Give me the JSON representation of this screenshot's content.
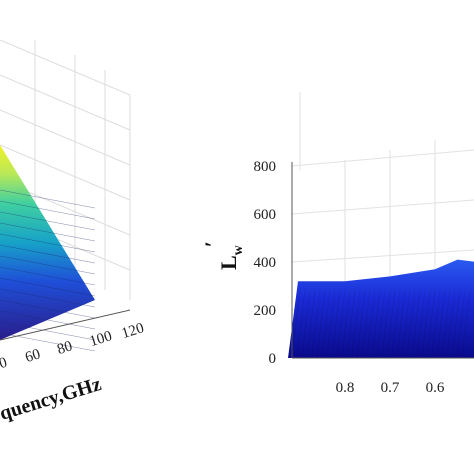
{
  "chart_data": [
    {
      "type": "surface",
      "panel": "left",
      "xlabel": "quency,GHz",
      "x_ticks": [
        "-0",
        "60",
        "80",
        "100",
        "120"
      ],
      "colormap": [
        "#2a1d8c",
        "#1f4fd8",
        "#17a2c8",
        "#3fd0a0",
        "#b8e85a",
        "#f2f226"
      ],
      "grid": true
    },
    {
      "type": "surface",
      "panel": "right",
      "ylabel": "L",
      "ylabel_sub": "w",
      "ylabel_prime": "′",
      "y_ticks": [
        0,
        200,
        400,
        600,
        800
      ],
      "ylim": [
        0,
        850
      ],
      "x_ticks": [
        "0.8",
        "0.7",
        "0.6"
      ],
      "x_values": [
        0.8,
        0.7,
        0.6,
        0.55
      ],
      "y_values": [
        320,
        340,
        370,
        410
      ],
      "colormap": [
        "#0a0a8c",
        "#1a2ad6",
        "#2a5af0"
      ],
      "grid": true
    }
  ]
}
